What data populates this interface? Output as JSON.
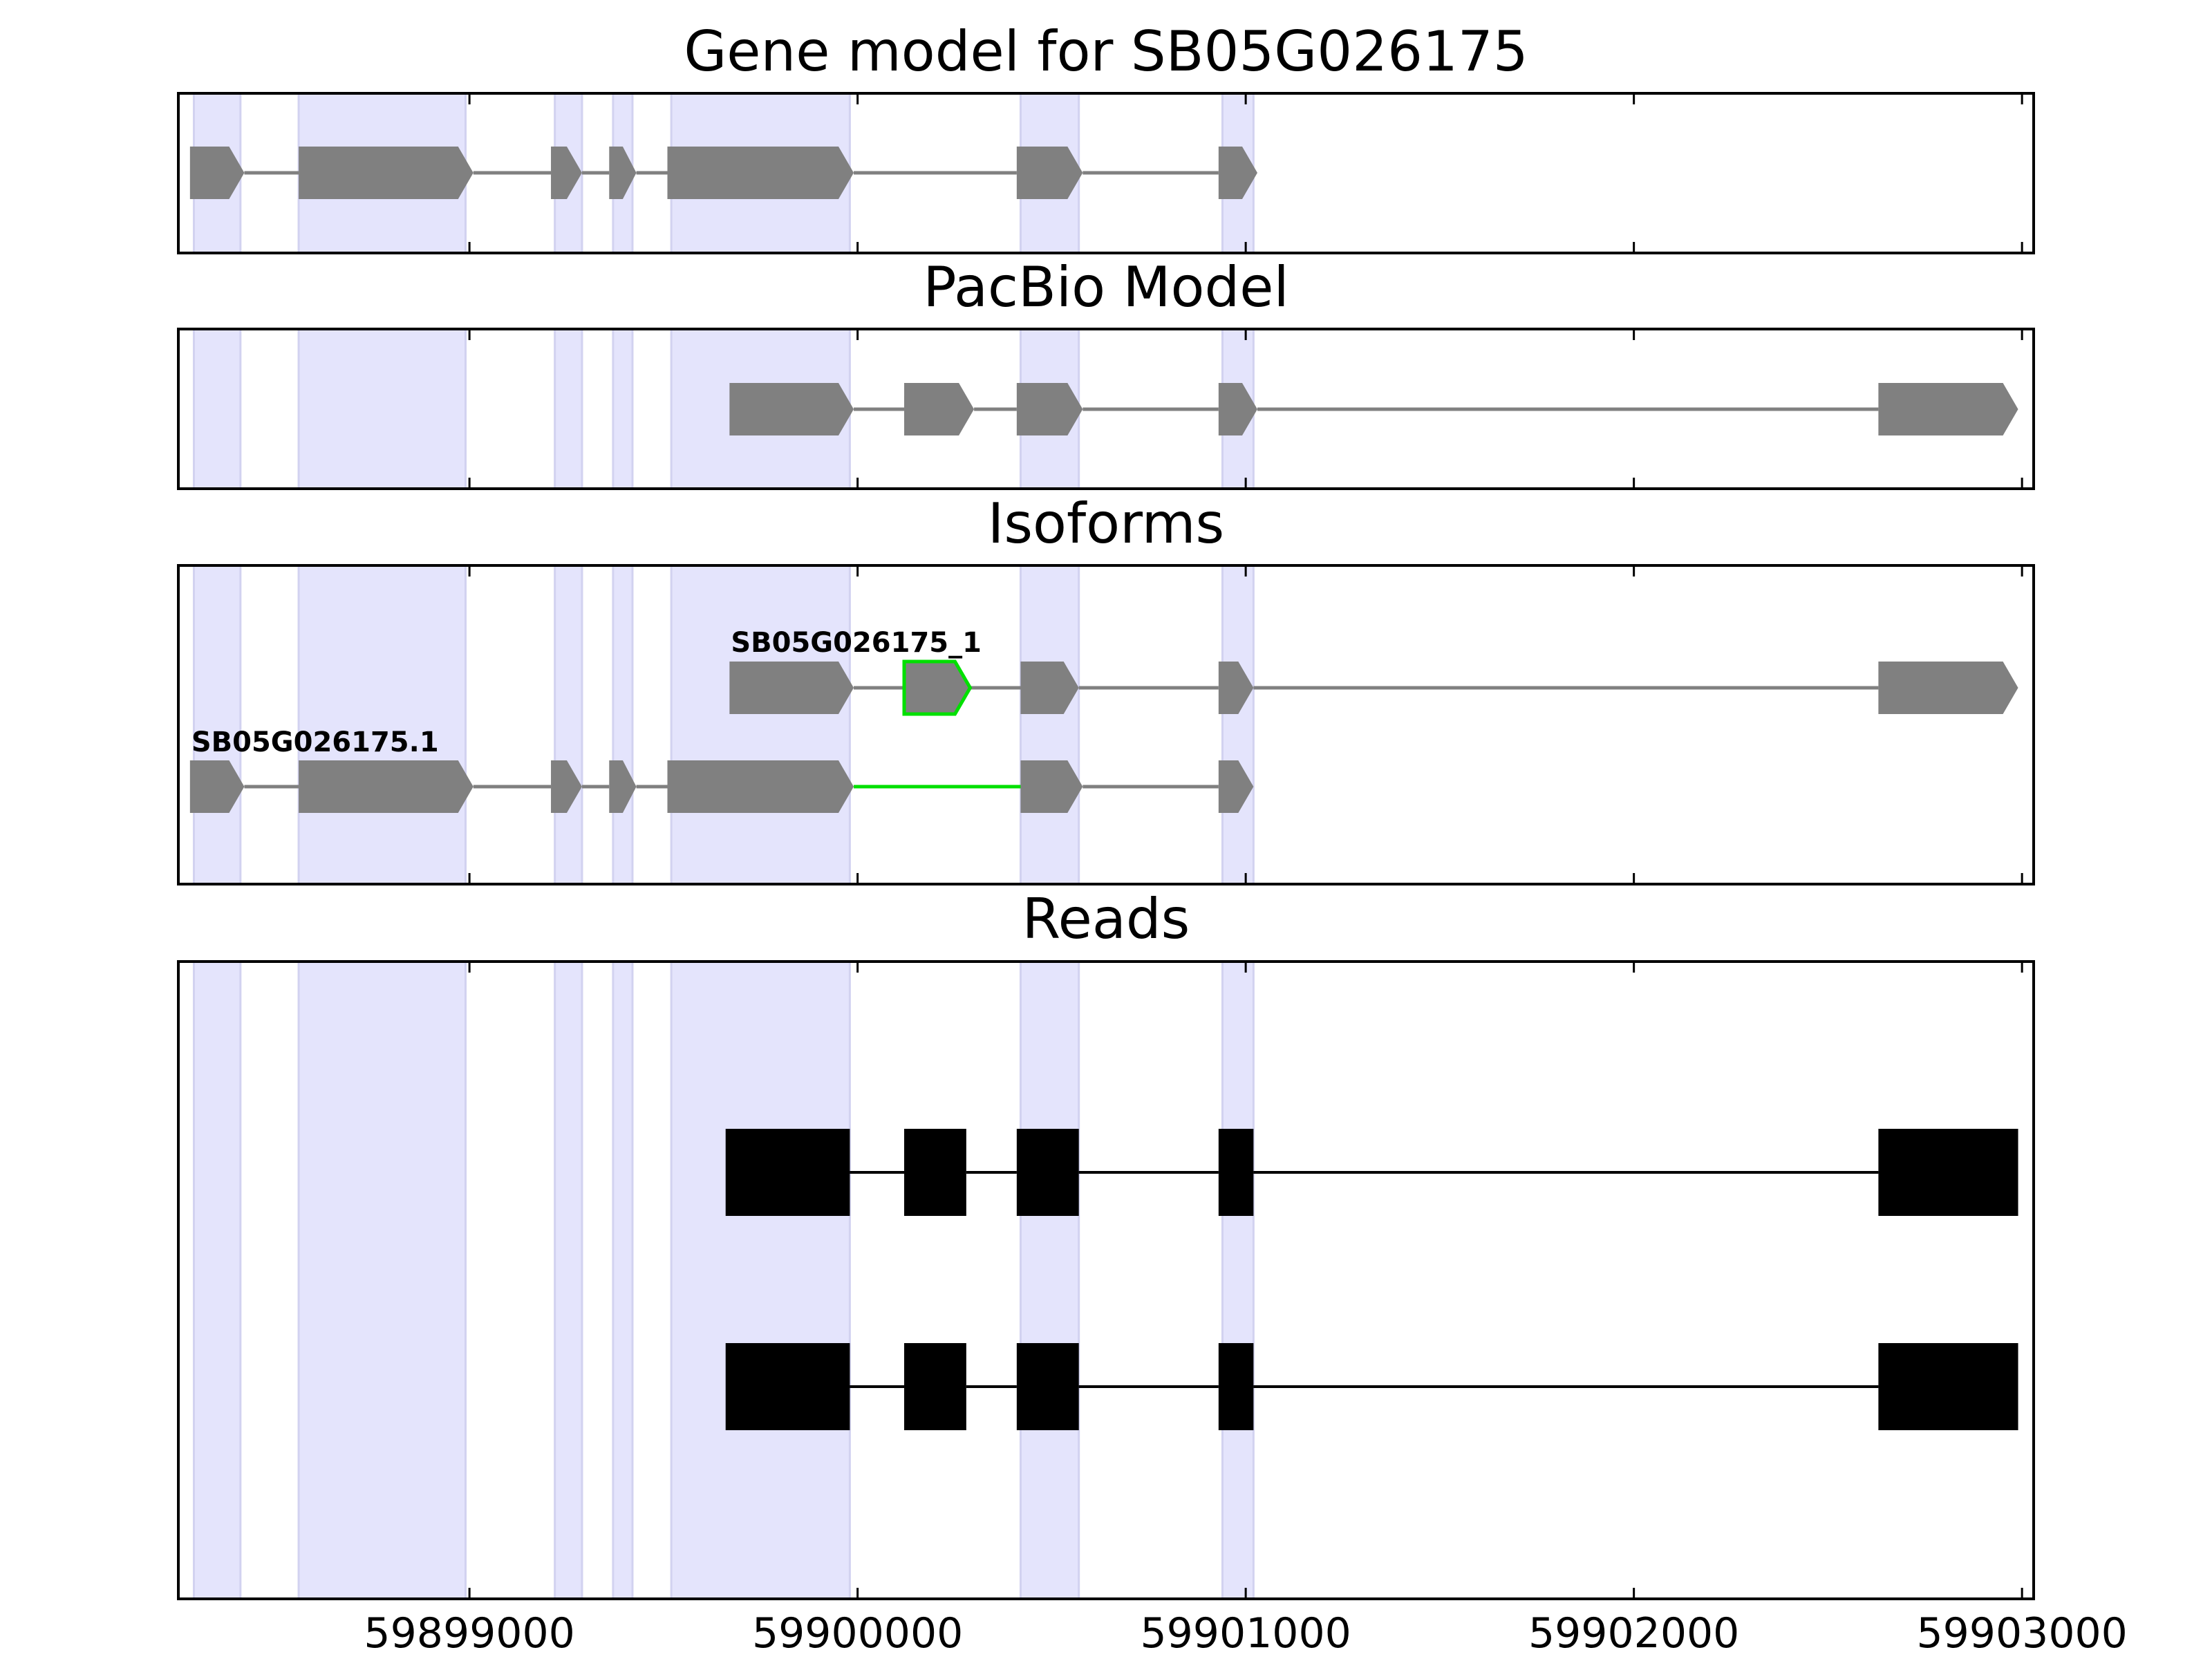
{
  "chart_data": {
    "type": "gene-track",
    "xlim": [
      59898250,
      59903030
    ],
    "xticks": [
      59899000,
      59900000,
      59901000,
      59902000,
      59903000
    ],
    "xtick_labels": [
      "59899000",
      "59900000",
      "59901000",
      "59902000",
      "59903000"
    ],
    "colors": {
      "exon": "#808080",
      "intron": "#808080",
      "highlight": "#00e000",
      "read": "#000000",
      "shade": "#e4e4fc",
      "shade_edge": "#d2d2f0"
    },
    "shaded_regions": [
      [
        59898290,
        59898410
      ],
      [
        59898560,
        59898990
      ],
      [
        59899220,
        59899290
      ],
      [
        59899370,
        59899420
      ],
      [
        59899520,
        59899980
      ],
      [
        59900420,
        59900570
      ],
      [
        59900940,
        59901020
      ]
    ],
    "panels": [
      {
        "id": "gene-model",
        "title": "Gene model for SB05G026175",
        "tracks": [
          {
            "label": "",
            "strand": "+",
            "exons": [
              [
                59898280,
                59898420
              ],
              [
                59898560,
                59899010
              ],
              [
                59899210,
                59899290
              ],
              [
                59899360,
                59899430
              ],
              [
                59899510,
                59899990
              ],
              [
                59900410,
                59900580
              ],
              [
                59900930,
                59901030
              ]
            ]
          }
        ]
      },
      {
        "id": "pacbio-model",
        "title": "PacBio Model",
        "tracks": [
          {
            "label": "",
            "strand": "+",
            "exons": [
              [
                59899670,
                59899990
              ],
              [
                59900120,
                59900300
              ],
              [
                59900410,
                59900580
              ],
              [
                59900930,
                59901030
              ],
              [
                59902630,
                59902990
              ]
            ]
          }
        ]
      },
      {
        "id": "isoforms",
        "title": "Isoforms",
        "tracks": [
          {
            "label": "SB05G026175_1",
            "strand": "+",
            "exons": [
              [
                59899670,
                59899990
              ],
              [
                59900120,
                59900290
              ],
              [
                59900420,
                59900570
              ],
              [
                59900930,
                59901020
              ],
              [
                59902630,
                59902990
              ]
            ],
            "highlight_exons": [
              1
            ]
          },
          {
            "label": "SB05G026175.1",
            "strand": "+",
            "exons": [
              [
                59898280,
                59898420
              ],
              [
                59898560,
                59899010
              ],
              [
                59899210,
                59899290
              ],
              [
                59899360,
                59899430
              ],
              [
                59899510,
                59899990
              ],
              [
                59900420,
                59900580
              ],
              [
                59900930,
                59901020
              ]
            ],
            "highlight_introns": [
              4
            ]
          }
        ]
      },
      {
        "id": "reads",
        "title": "Reads",
        "tracks": [
          {
            "label": "",
            "style": "read",
            "exons": [
              [
                59899660,
                59899980
              ],
              [
                59900120,
                59900280
              ],
              [
                59900410,
                59900570
              ],
              [
                59900930,
                59901020
              ],
              [
                59902630,
                59902990
              ]
            ]
          },
          {
            "label": "",
            "style": "read",
            "exons": [
              [
                59899660,
                59899980
              ],
              [
                59900120,
                59900280
              ],
              [
                59900410,
                59900570
              ],
              [
                59900930,
                59901020
              ],
              [
                59902630,
                59902990
              ]
            ]
          }
        ]
      }
    ]
  }
}
